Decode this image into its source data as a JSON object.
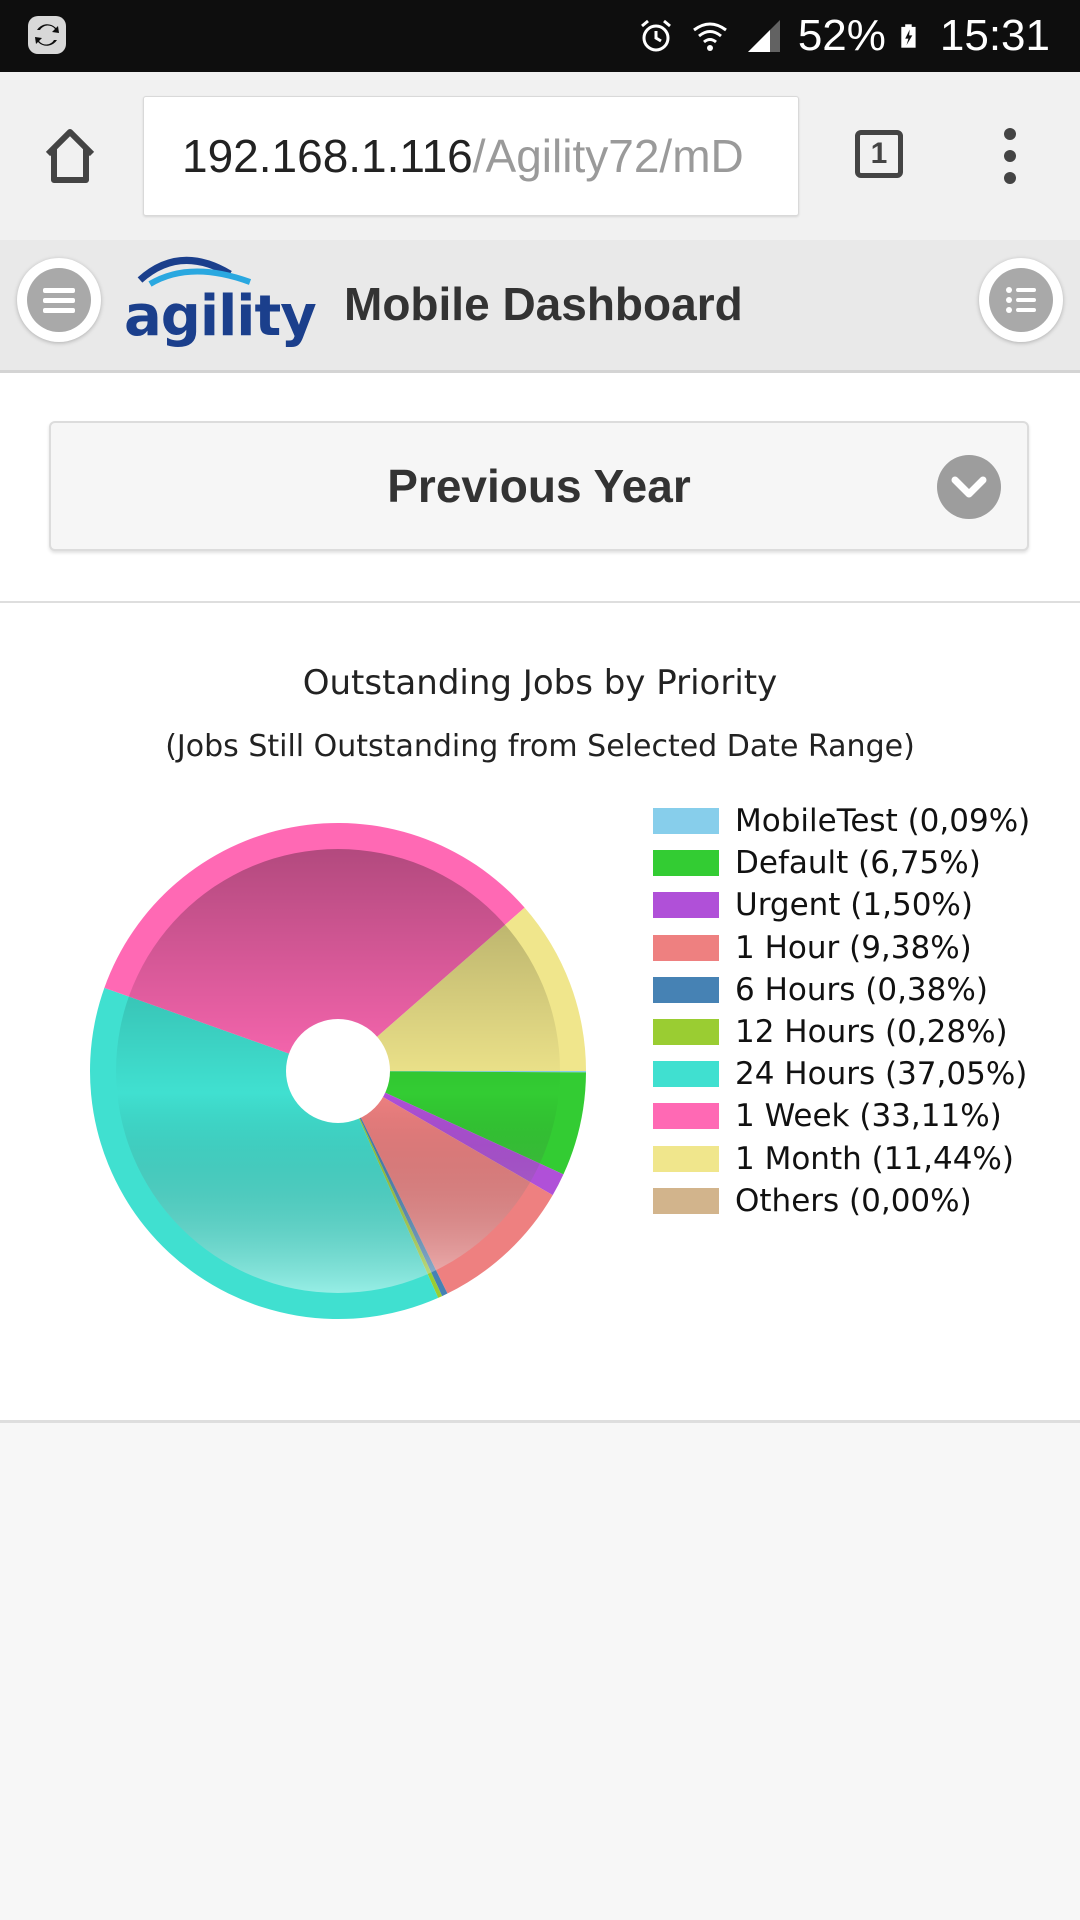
{
  "status_bar": {
    "battery": "52%",
    "time": "15:31"
  },
  "browser": {
    "url_host": "192.168.1.116",
    "url_path": "/Agility72/mD",
    "tab_count": "1"
  },
  "header": {
    "logo_text": "agility",
    "title": "Mobile Dashboard"
  },
  "date_select": {
    "selected": "Previous Year"
  },
  "chart_data": {
    "type": "pie",
    "title": "Outstanding Jobs by Priority",
    "subtitle": "(Jobs Still Outstanding from Selected Date Range)",
    "legend_position": "right",
    "categories": [
      "MobileTest",
      "Default",
      "Urgent",
      "1 Hour",
      "6 Hours",
      "12 Hours",
      "24 Hours",
      "1 Week",
      "1 Month",
      "Others"
    ],
    "values": [
      0.09,
      6.75,
      1.5,
      9.38,
      0.38,
      0.28,
      37.05,
      33.11,
      11.44,
      0.0
    ],
    "legend_labels": [
      "MobileTest (0,09%)",
      "Default (6,75%)",
      "Urgent (1,50%)",
      "1 Hour (9,38%)",
      "6 Hours (0,38%)",
      "12 Hours (0,28%)",
      "24 Hours (37,05%)",
      "1 Week (33,11%)",
      "1 Month (11,44%)",
      "Others (0,00%)"
    ],
    "colors": [
      "#87ceeb",
      "#33cc33",
      "#b050d8",
      "#ee8080",
      "#4682b4",
      "#9acd32",
      "#40e0d0",
      "#ff69b4",
      "#f0e68c",
      "#d2b48c"
    ]
  }
}
